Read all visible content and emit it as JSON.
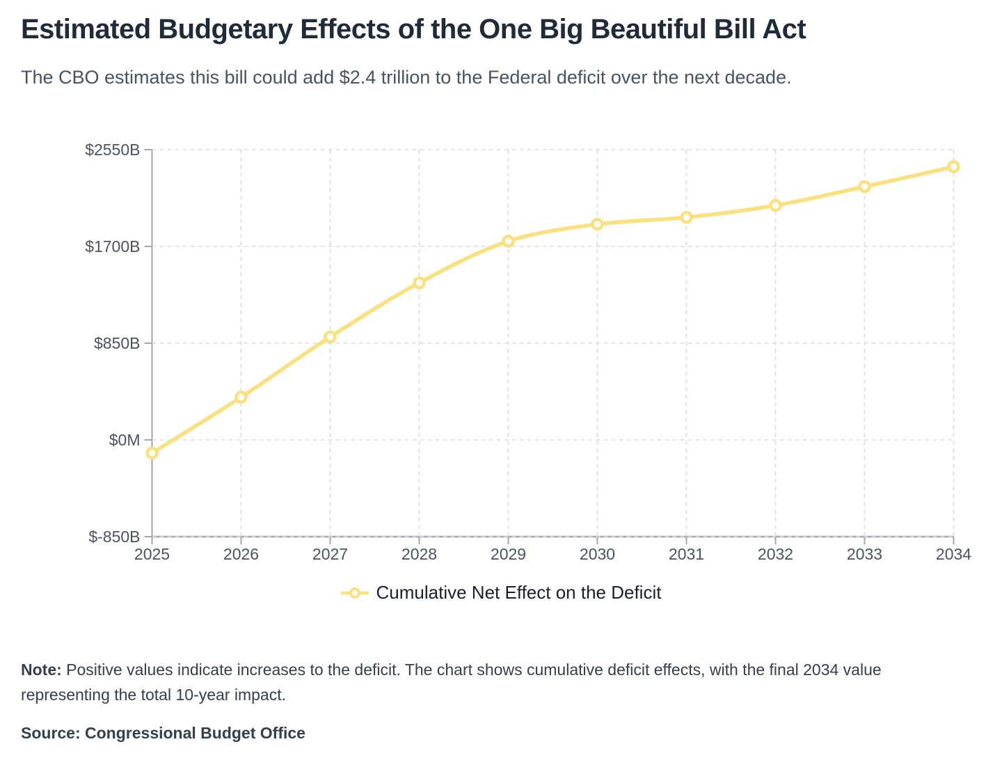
{
  "header": {
    "title": "Estimated Budgetary Effects of the One Big Beautiful Bill Act",
    "subtitle": "The CBO estimates this bill could add $2.4 trillion to the Federal deficit over the next decade."
  },
  "chart_data": {
    "type": "line",
    "categories": [
      "2025",
      "2026",
      "2027",
      "2028",
      "2029",
      "2030",
      "2031",
      "2032",
      "2033",
      "2034"
    ],
    "series": [
      {
        "name": "Cumulative Net Effect on the Deficit",
        "values": [
          -115,
          375,
          905,
          1380,
          1745,
          1895,
          1955,
          2060,
          2225,
          2400
        ]
      }
    ],
    "xlabel": "",
    "ylabel": "",
    "ylim": [
      -850,
      2550
    ],
    "y_ticks": [
      {
        "label": "$2550B",
        "value": 2550
      },
      {
        "label": "$1700B",
        "value": 1700
      },
      {
        "label": "$850B",
        "value": 850
      },
      {
        "label": "$0M",
        "value": 0
      },
      {
        "label": "$-850B",
        "value": -850
      }
    ],
    "grid": true,
    "legend_position": "bottom",
    "line_color": "#FAE17D",
    "point_fill_color": "#FFFFFF",
    "grid_color": "#D9DCE2",
    "axis_color": "#9EA5AF",
    "tick_label_color": "#4A5362"
  },
  "legend": {
    "label": "Cumulative Net Effect on the Deficit"
  },
  "note": {
    "label": "Note:",
    "text": "Positive values indicate increases to the deficit. The chart shows cumulative deficit effects, with the final 2034 value representing the total 10-year impact."
  },
  "source": {
    "text": "Source: Congressional Budget Office"
  }
}
